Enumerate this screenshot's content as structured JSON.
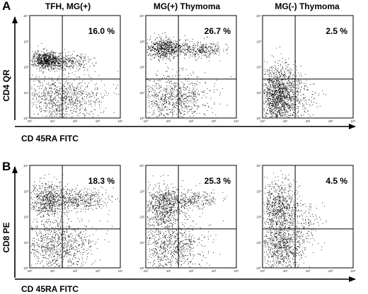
{
  "figure": {
    "panels": [
      {
        "letter": "A",
        "ylabel": "CD4 QR",
        "xlabel": "CD 45RA FITC",
        "columns": [
          {
            "title": "TFH, MG(+)",
            "percent": "16.0 %"
          },
          {
            "title": "MG(+) Thymoma",
            "percent": "26.7 %"
          },
          {
            "title": "MG(-) Thymoma",
            "percent": "2.5 %"
          }
        ]
      },
      {
        "letter": "B",
        "ylabel": "CD8 PE",
        "xlabel": "CD 45RA FITC",
        "columns": [
          {
            "title": "",
            "percent": "18.3 %"
          },
          {
            "title": "",
            "percent": "25.3 %"
          },
          {
            "title": "",
            "percent": "4.5 %"
          }
        ]
      }
    ],
    "tick_labels": [
      "10⁰",
      "10¹",
      "10²",
      "10³",
      "10⁴"
    ]
  },
  "chart_data": [
    {
      "type": "scatter",
      "panel": "A",
      "plot": "TFH, MG(+)",
      "xlabel": "CD 45RA FITC",
      "ylabel": "CD4 QR",
      "xscale": "log",
      "yscale": "log",
      "xlim": [
        1,
        10000
      ],
      "ylim": [
        1,
        10000
      ],
      "quadrant_upper_right_percent": 16.0
    },
    {
      "type": "scatter",
      "panel": "A",
      "plot": "MG(+) Thymoma",
      "xlabel": "CD 45RA FITC",
      "ylabel": "CD4 QR",
      "xscale": "log",
      "yscale": "log",
      "xlim": [
        1,
        10000
      ],
      "ylim": [
        1,
        10000
      ],
      "quadrant_upper_right_percent": 26.7
    },
    {
      "type": "scatter",
      "panel": "A",
      "plot": "MG(-) Thymoma",
      "xlabel": "CD 45RA FITC",
      "ylabel": "CD4 QR",
      "xscale": "log",
      "yscale": "log",
      "xlim": [
        1,
        10000
      ],
      "ylim": [
        1,
        10000
      ],
      "quadrant_upper_right_percent": 2.5
    },
    {
      "type": "scatter",
      "panel": "B",
      "plot": "TFH, MG(+)",
      "xlabel": "CD 45RA FITC",
      "ylabel": "CD8 PE",
      "xscale": "log",
      "yscale": "log",
      "xlim": [
        1,
        10000
      ],
      "ylim": [
        1,
        10000
      ],
      "quadrant_upper_right_percent": 18.3
    },
    {
      "type": "scatter",
      "panel": "B",
      "plot": "MG(+) Thymoma",
      "xlabel": "CD 45RA FITC",
      "ylabel": "CD8 PE",
      "xscale": "log",
      "yscale": "log",
      "xlim": [
        1,
        10000
      ],
      "ylim": [
        1,
        10000
      ],
      "quadrant_upper_right_percent": 25.3
    },
    {
      "type": "scatter",
      "panel": "B",
      "plot": "MG(-) Thymoma",
      "xlabel": "CD 45RA FITC",
      "ylabel": "CD8 PE",
      "xscale": "log",
      "yscale": "log",
      "xlim": [
        1,
        10000
      ],
      "ylim": [
        1,
        10000
      ],
      "quadrant_upper_right_percent": 4.5
    }
  ]
}
